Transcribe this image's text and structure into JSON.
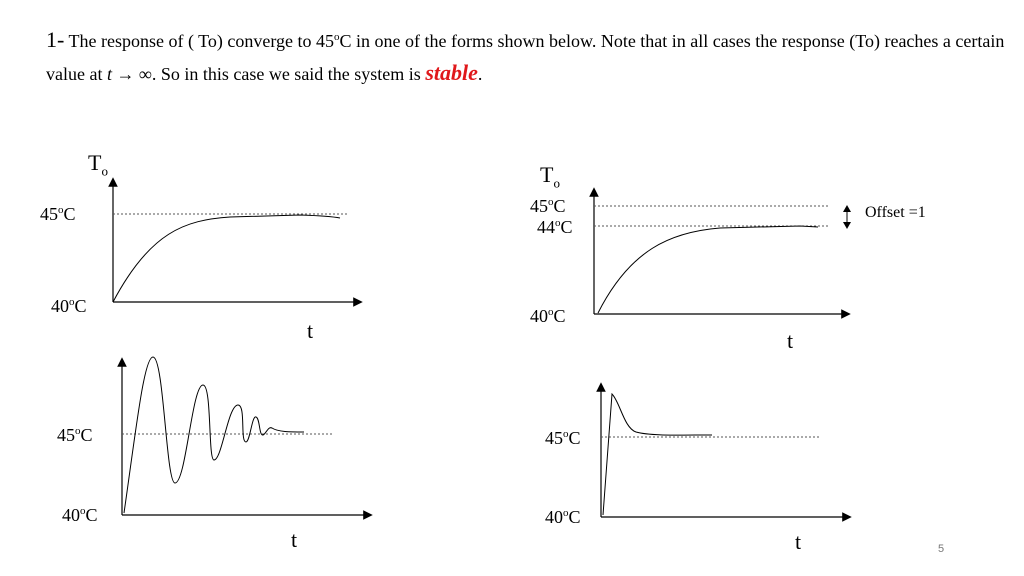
{
  "heading": {
    "number": "1-",
    "part1": " The response of ( To) converge to 45",
    "sup_o": "o",
    "part2": "C in one of the  forms shown below. Note that in all cases the response (To) reaches a certain value at ",
    "math": "t → ∞",
    "part3": ". So in this case we said the system is ",
    "stable": "stable",
    "end": "."
  },
  "graph1": {
    "y_var": "T",
    "y_sub": "o",
    "top_val": "45",
    "bottom_val": "40",
    "unit": "C",
    "x_var": "t"
  },
  "graph2": {
    "y_var": "T",
    "y_sub": "o",
    "top_val": "45",
    "mid_val": "44",
    "bottom_val": "40",
    "unit": "C",
    "x_var": "t",
    "offset": "Offset =1"
  },
  "graph3": {
    "top_val": "45",
    "bottom_val": "40",
    "unit": "C",
    "x_var": "t"
  },
  "graph4": {
    "top_val": "45",
    "bottom_val": "40",
    "unit": "C",
    "x_var": "t"
  },
  "sup_o": "o",
  "page_number": "5"
}
